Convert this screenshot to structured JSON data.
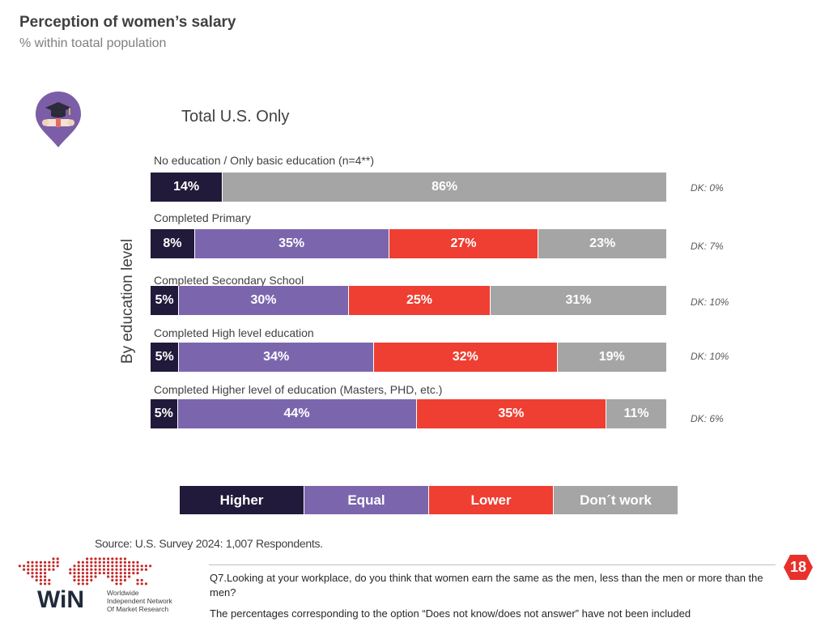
{
  "header": {
    "title": "Perception of women’s salary",
    "subtitle": "% within toatal population"
  },
  "icon": {
    "name": "graduation-cap-icon",
    "color": "#7b5ea7"
  },
  "chart_data": {
    "type": "bar",
    "orientation": "horizontal",
    "stacked": true,
    "title": "Total U.S. Only",
    "ylabel": "By education level",
    "xlim": [
      0,
      100
    ],
    "categories": [
      "No education / Only basic education (n=4**)",
      "Completed Primary",
      "Completed Secondary School",
      "Completed High level education",
      "Completed Higher level of education (Masters, PHD, etc.)"
    ],
    "series": [
      {
        "name": "Higher",
        "color": "#211a3a",
        "values": [
          14,
          8,
          5,
          5,
          5
        ],
        "labels": [
          "14%",
          "8%",
          "5%",
          "5%",
          "5%"
        ]
      },
      {
        "name": "Equal",
        "color": "#7b66ae",
        "values": [
          0,
          35,
          30,
          34,
          44
        ],
        "labels": [
          "",
          "35%",
          "30%",
          "34%",
          "44%"
        ]
      },
      {
        "name": "Lower",
        "color": "#ef3e32",
        "values": [
          0,
          27,
          25,
          32,
          35
        ],
        "labels": [
          "",
          "27%",
          "25%",
          "32%",
          "35%"
        ]
      },
      {
        "name": "Don´t work",
        "color": "#a5a5a5",
        "values": [
          86,
          23,
          31,
          19,
          11
        ],
        "labels": [
          "86%",
          "23%",
          "31%",
          "19%",
          "11%"
        ]
      }
    ],
    "dk": [
      "DK: 0%",
      "DK: 7%",
      "DK: 10%",
      "DK: 10%",
      "DK: 6%"
    ],
    "legend": [
      "Higher",
      "Equal",
      "Lower",
      "Don´t work"
    ]
  },
  "footer": {
    "source": "Source: U.S. Survey 2024: 1,007 Respondents.",
    "question": "Q7.Looking at your workplace, do you think that women earn the same as the men, less than the men or more than the men?",
    "note": "The percentages corresponding to the option “Does not know/does not answer” have not been included",
    "page_number": "18",
    "badge_color": "#e8312b"
  },
  "logo": {
    "wordmark": "WiN",
    "line1": "Worldwide",
    "line2": "Independent Network",
    "line3": "Of Market Research",
    "color": "#c62828"
  }
}
